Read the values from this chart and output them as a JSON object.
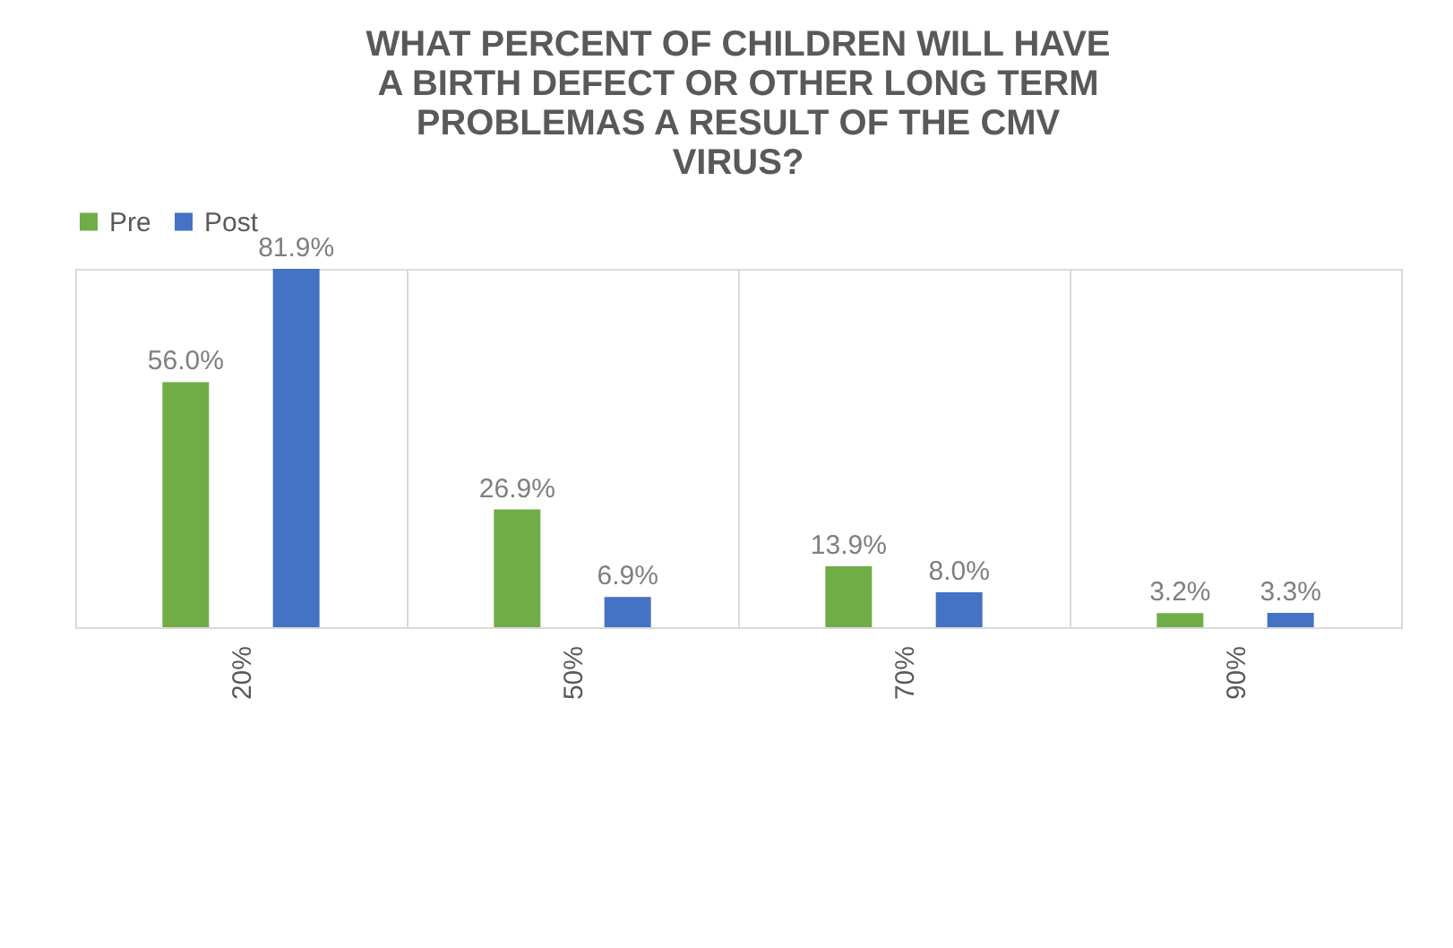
{
  "chart_data": {
    "type": "bar",
    "title": "WHAT PERCENT OF CHILDREN WILL HAVE A BIRTH DEFECT OR OTHER LONG TERM PROBLEMAS A RESULT OF THE CMV VIRUS?",
    "categories": [
      "20%",
      "50%",
      "70%",
      "90%"
    ],
    "series": [
      {
        "name": "Pre",
        "color": "#70ad47",
        "values": [
          56.0,
          26.9,
          13.9,
          3.2
        ],
        "value_labels": [
          "56.0%",
          "26.9%",
          "13.9%",
          "3.2%"
        ]
      },
      {
        "name": "Post",
        "color": "#4472c4",
        "values": [
          81.9,
          6.9,
          8.0,
          3.3
        ],
        "value_labels": [
          "81.9%",
          "6.9%",
          "8.0%",
          "3.3%"
        ]
      }
    ],
    "grid": "x",
    "legend": "top"
  }
}
